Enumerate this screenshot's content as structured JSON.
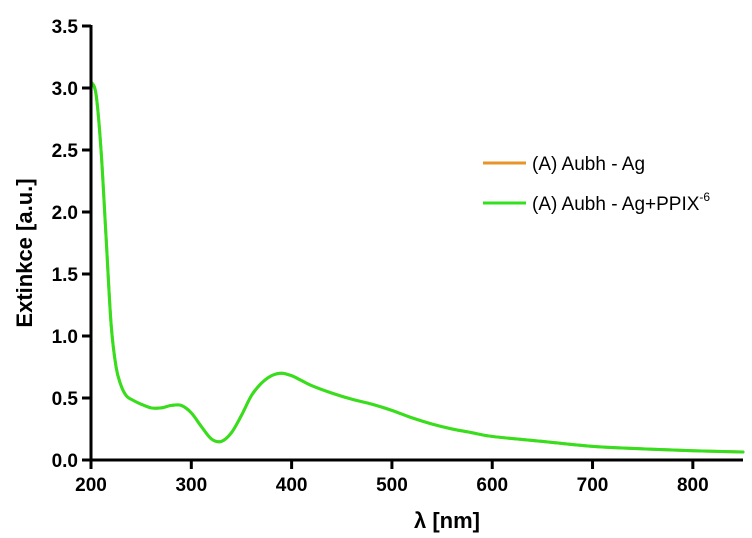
{
  "chart_data": {
    "type": "line",
    "title": "",
    "xlabel": "λ  [nm]",
    "ylabel": "Extinkce [a.u.]",
    "xlim": [
      200,
      850
    ],
    "ylim": [
      0,
      3.5
    ],
    "x_ticks": [
      200,
      300,
      400,
      500,
      600,
      700,
      800
    ],
    "y_ticks": [
      0.0,
      0.5,
      1.0,
      1.5,
      2.0,
      2.5,
      3.0,
      3.5
    ],
    "x_tick_labels": [
      "200",
      "300",
      "400",
      "500",
      "600",
      "700",
      "800"
    ],
    "y_tick_labels": [
      "0.0",
      "0.5",
      "1.0",
      "1.5",
      "2.0",
      "2.5",
      "3.0",
      "3.5"
    ],
    "grid": false,
    "legend_position": "right",
    "series": [
      {
        "name": "(A) Aubh - Ag",
        "name_superscript": "",
        "color": "#e8942a",
        "x": [
          200,
          205,
          210,
          215,
          220,
          225,
          230,
          235,
          240,
          250,
          260,
          270,
          280,
          290,
          300,
          310,
          320,
          330,
          340,
          350,
          360,
          370,
          380,
          390,
          400,
          410,
          420,
          440,
          460,
          480,
          500,
          520,
          540,
          560,
          580,
          600,
          650,
          700,
          750,
          800,
          850
        ],
        "y": [
          3.05,
          2.95,
          2.5,
          1.8,
          1.1,
          0.75,
          0.6,
          0.52,
          0.49,
          0.45,
          0.42,
          0.42,
          0.44,
          0.44,
          0.38,
          0.27,
          0.17,
          0.15,
          0.22,
          0.36,
          0.52,
          0.62,
          0.68,
          0.7,
          0.68,
          0.64,
          0.6,
          0.54,
          0.49,
          0.45,
          0.4,
          0.34,
          0.29,
          0.25,
          0.22,
          0.19,
          0.15,
          0.11,
          0.09,
          0.075,
          0.065
        ]
      },
      {
        "name": "(A) Aubh - Ag+PPIX",
        "name_superscript": "-6",
        "color": "#33e01d",
        "x": [
          200,
          205,
          210,
          215,
          220,
          225,
          230,
          235,
          240,
          250,
          260,
          270,
          280,
          290,
          300,
          310,
          320,
          330,
          340,
          350,
          360,
          370,
          380,
          390,
          400,
          410,
          420,
          440,
          460,
          480,
          500,
          520,
          540,
          560,
          580,
          600,
          650,
          700,
          750,
          800,
          850
        ],
        "y": [
          3.05,
          2.95,
          2.5,
          1.8,
          1.1,
          0.75,
          0.6,
          0.52,
          0.49,
          0.45,
          0.42,
          0.42,
          0.44,
          0.44,
          0.38,
          0.27,
          0.17,
          0.15,
          0.22,
          0.36,
          0.52,
          0.62,
          0.68,
          0.7,
          0.68,
          0.64,
          0.6,
          0.54,
          0.49,
          0.45,
          0.4,
          0.34,
          0.29,
          0.25,
          0.22,
          0.19,
          0.15,
          0.11,
          0.09,
          0.075,
          0.065
        ]
      }
    ]
  }
}
